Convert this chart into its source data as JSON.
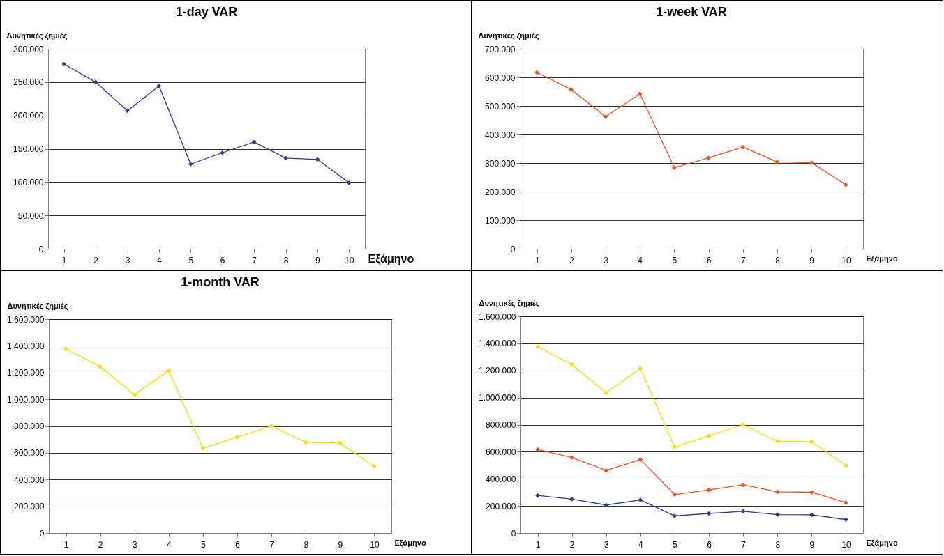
{
  "chart_data": [
    {
      "type": "line",
      "title": "1-day VAR",
      "ylabel": "Δυνητικές ζημιές",
      "xlabel": "Εξάμηνο",
      "categories": [
        "1",
        "2",
        "3",
        "4",
        "5",
        "6",
        "7",
        "8",
        "9",
        "10"
      ],
      "series": [
        {
          "color": "#2b3a8c",
          "values": [
            277000,
            250000,
            207000,
            244000,
            127000,
            144000,
            160000,
            136000,
            134000,
            99000
          ]
        }
      ],
      "ylim": [
        0,
        300000
      ],
      "yticks": [
        {
          "value": 0,
          "label": "0"
        },
        {
          "value": 50000,
          "label": "50.000"
        },
        {
          "value": 100000,
          "label": "100.000"
        },
        {
          "value": 150000,
          "label": "150.000"
        },
        {
          "value": 200000,
          "label": "200.000"
        },
        {
          "value": 250000,
          "label": "250.000"
        },
        {
          "value": 300000,
          "label": "300.000"
        }
      ],
      "grid": "y",
      "marker": "diamond"
    },
    {
      "type": "line",
      "title": "1-week VAR",
      "ylabel": "Δυνητικές ζημιές",
      "xlabel": "Εξάμηνο",
      "categories": [
        "1",
        "2",
        "3",
        "4",
        "5",
        "6",
        "7",
        "8",
        "9",
        "10"
      ],
      "series": [
        {
          "color": "#f04e23",
          "values": [
            617000,
            557000,
            462000,
            542000,
            284000,
            318000,
            356000,
            304000,
            301000,
            224000
          ]
        }
      ],
      "ylim": [
        0,
        700000
      ],
      "yticks": [
        {
          "value": 0,
          "label": "0"
        },
        {
          "value": 100000,
          "label": "100.000"
        },
        {
          "value": 200000,
          "label": "200.000"
        },
        {
          "value": 300000,
          "label": "300.000"
        },
        {
          "value": 400000,
          "label": "400.000"
        },
        {
          "value": 500000,
          "label": "500.000"
        },
        {
          "value": 600000,
          "label": "600.000"
        },
        {
          "value": 700000,
          "label": "700.000"
        }
      ],
      "grid": "y",
      "marker": "diamond"
    },
    {
      "type": "line",
      "title": "1-month VAR",
      "ylabel": "Δυνητικές ζημιές",
      "xlabel": "Εξάμηνο",
      "categories": [
        "1",
        "2",
        "3",
        "4",
        "5",
        "6",
        "7",
        "8",
        "9",
        "10"
      ],
      "series": [
        {
          "color": "#ffd800",
          "values": [
            1376000,
            1244000,
            1034000,
            1215000,
            634000,
            717000,
            800000,
            678000,
            673000,
            498000
          ]
        }
      ],
      "ylim": [
        0,
        1600000
      ],
      "yticks": [
        {
          "value": 0,
          "label": "0"
        },
        {
          "value": 200000,
          "label": "200.000"
        },
        {
          "value": 400000,
          "label": "400.000"
        },
        {
          "value": 600000,
          "label": "600.000"
        },
        {
          "value": 800000,
          "label": "800.000"
        },
        {
          "value": 1000000,
          "label": "1.000.000"
        },
        {
          "value": 1200000,
          "label": "1.200.000"
        },
        {
          "value": 1400000,
          "label": "1.400.000"
        },
        {
          "value": 1600000,
          "label": "1.600.000"
        }
      ],
      "grid": "y",
      "marker": "diamond"
    },
    {
      "type": "line",
      "ylabel": "Δυνητικές ζημιές",
      "xlabel": "Εξάμηνο",
      "categories": [
        "1",
        "2",
        "3",
        "4",
        "5",
        "6",
        "7",
        "8",
        "9",
        "10"
      ],
      "series": [
        {
          "color": "#2b3a8c",
          "values": [
            277000,
            250000,
            207000,
            244000,
            127000,
            144000,
            160000,
            136000,
            134000,
            99000
          ]
        },
        {
          "color": "#f04e23",
          "values": [
            617000,
            557000,
            462000,
            542000,
            284000,
            318000,
            356000,
            304000,
            301000,
            224000
          ]
        },
        {
          "color": "#ffd800",
          "values": [
            1376000,
            1244000,
            1034000,
            1215000,
            634000,
            717000,
            800000,
            678000,
            673000,
            498000
          ]
        }
      ],
      "ylim": [
        0,
        1600000
      ],
      "yticks": [
        {
          "value": 0,
          "label": "0"
        },
        {
          "value": 200000,
          "label": "200.000"
        },
        {
          "value": 400000,
          "label": "400.000"
        },
        {
          "value": 600000,
          "label": "600.000"
        },
        {
          "value": 800000,
          "label": "800.000"
        },
        {
          "value": 1000000,
          "label": "1.000.000"
        },
        {
          "value": 1200000,
          "label": "1.200.000"
        },
        {
          "value": 1400000,
          "label": "1.400.000"
        },
        {
          "value": 1600000,
          "label": "1.600.000"
        }
      ],
      "grid": "y",
      "marker": "diamond"
    }
  ]
}
